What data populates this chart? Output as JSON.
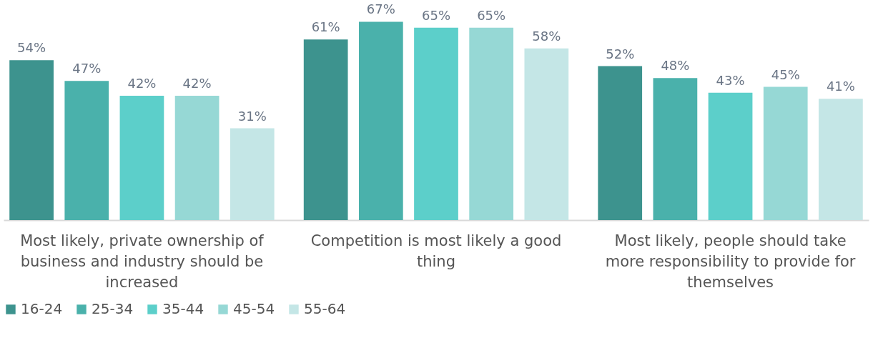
{
  "chart_data": {
    "type": "bar",
    "categories": [
      "Most likely, private ownership of business and industry should be increased",
      "Competition is most likely a good thing",
      "Most likely, people should take more responsibility to provide for themselves"
    ],
    "series": [
      {
        "name": "16-24",
        "color": "#3d938e",
        "values": [
          54,
          61,
          52
        ],
        "value_labels": [
          "54%",
          "61%",
          "52%"
        ]
      },
      {
        "name": "25-34",
        "color": "#4ab1ab",
        "values": [
          47,
          67,
          48
        ],
        "value_labels": [
          "47%",
          "67%",
          "48%"
        ]
      },
      {
        "name": "35-44",
        "color": "#5ccfca",
        "values": [
          42,
          65,
          43
        ],
        "value_labels": [
          "42%",
          "65%",
          "43%"
        ]
      },
      {
        "name": "45-54",
        "color": "#96d8d5",
        "values": [
          42,
          65,
          45
        ],
        "value_labels": [
          "42%",
          "65%",
          "45%"
        ]
      },
      {
        "name": "55-64",
        "color": "#c4e6e6",
        "values": [
          31,
          58,
          41
        ],
        "value_labels": [
          "31%",
          "58%",
          "41%"
        ]
      }
    ],
    "legend": "bottom",
    "grid": false
  }
}
